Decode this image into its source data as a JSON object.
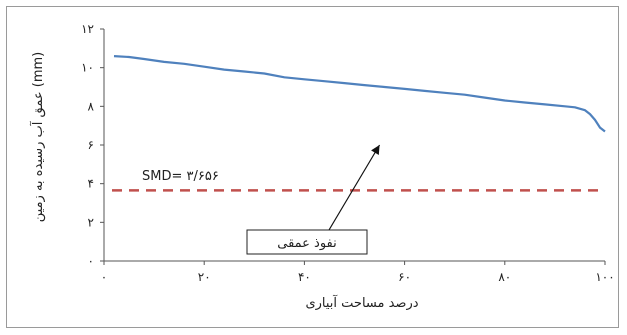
{
  "chart_data": {
    "type": "line",
    "title": "",
    "xlabel": "درصد مساحت آبیاری",
    "ylabel": "عمق آب رسیده به زمین (mm)",
    "xlim": [
      0,
      100
    ],
    "ylim": [
      0,
      12
    ],
    "x_ticks": [
      {
        "value": 0,
        "label": "۰"
      },
      {
        "value": 20,
        "label": "۲۰"
      },
      {
        "value": 40,
        "label": "۴۰"
      },
      {
        "value": 60,
        "label": "۶۰"
      },
      {
        "value": 80,
        "label": "۸۰"
      },
      {
        "value": 100,
        "label": "۱۰۰"
      }
    ],
    "y_ticks": [
      {
        "value": 0,
        "label": "۰"
      },
      {
        "value": 2,
        "label": "۲"
      },
      {
        "value": 4,
        "label": "۴"
      },
      {
        "value": 6,
        "label": "۶"
      },
      {
        "value": 8,
        "label": "۸"
      },
      {
        "value": 10,
        "label": "۱۰"
      },
      {
        "value": 12,
        "label": "۱۲"
      }
    ],
    "grid": false,
    "series": [
      {
        "color": "#4f81bd",
        "x": [
          2,
          5,
          8,
          12,
          16,
          20,
          24,
          28,
          32,
          36,
          40,
          44,
          48,
          52,
          56,
          60,
          64,
          68,
          72,
          76,
          80,
          84,
          88,
          92,
          94,
          96,
          97,
          98,
          99,
          100
        ],
        "y": [
          10.6,
          10.55,
          10.45,
          10.3,
          10.2,
          10.05,
          9.9,
          9.8,
          9.7,
          9.5,
          9.4,
          9.3,
          9.2,
          9.1,
          9.0,
          8.9,
          8.8,
          8.7,
          8.6,
          8.45,
          8.3,
          8.2,
          8.1,
          8.0,
          7.95,
          7.8,
          7.6,
          7.3,
          6.9,
          6.7
        ]
      }
    ],
    "reference_line": {
      "y": 3.656,
      "label": "SMD= ۳/۶۵۶",
      "color": "#c0504d",
      "style": "dashed"
    },
    "annotation": {
      "text": "نفوذ عمقی",
      "arrow_to": {
        "x": 55,
        "y": 6.0
      }
    }
  }
}
